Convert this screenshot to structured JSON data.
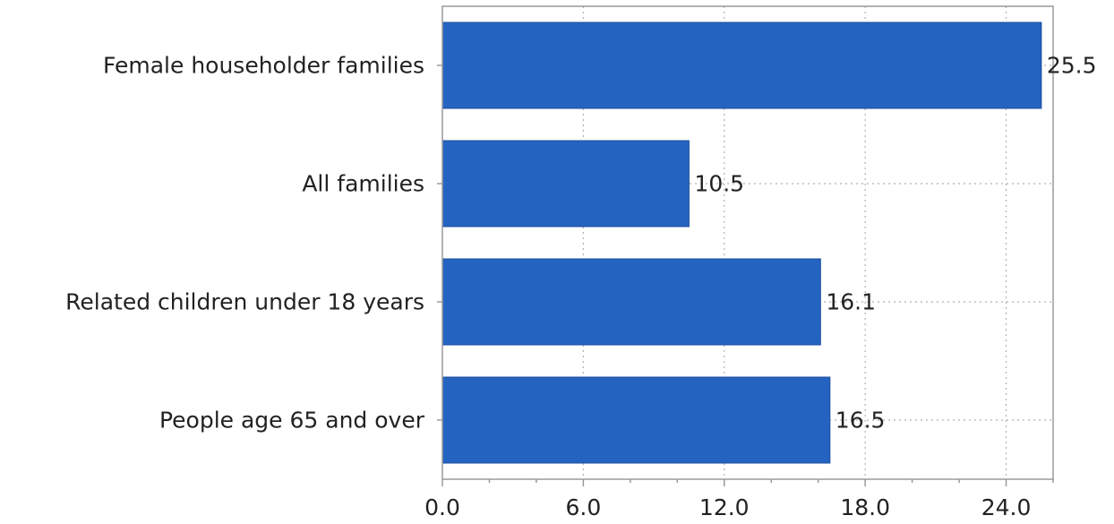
{
  "chart_data": {
    "type": "bar",
    "orientation": "horizontal",
    "categories": [
      "Female householder families",
      "All families",
      "Related children under 18 years",
      "People age 65 and over"
    ],
    "values": [
      25.5,
      10.5,
      16.1,
      16.5
    ],
    "data_labels": [
      "25.5",
      "10.5",
      "16.1",
      "16.5"
    ],
    "xlim": [
      0,
      26
    ],
    "x_ticks": [
      0,
      6,
      12,
      18,
      24
    ],
    "x_tick_labels": [
      "0.0",
      "6.0",
      "12.0",
      "18.0",
      "24.0"
    ],
    "grid": true,
    "bar_color": "#2563c0"
  }
}
